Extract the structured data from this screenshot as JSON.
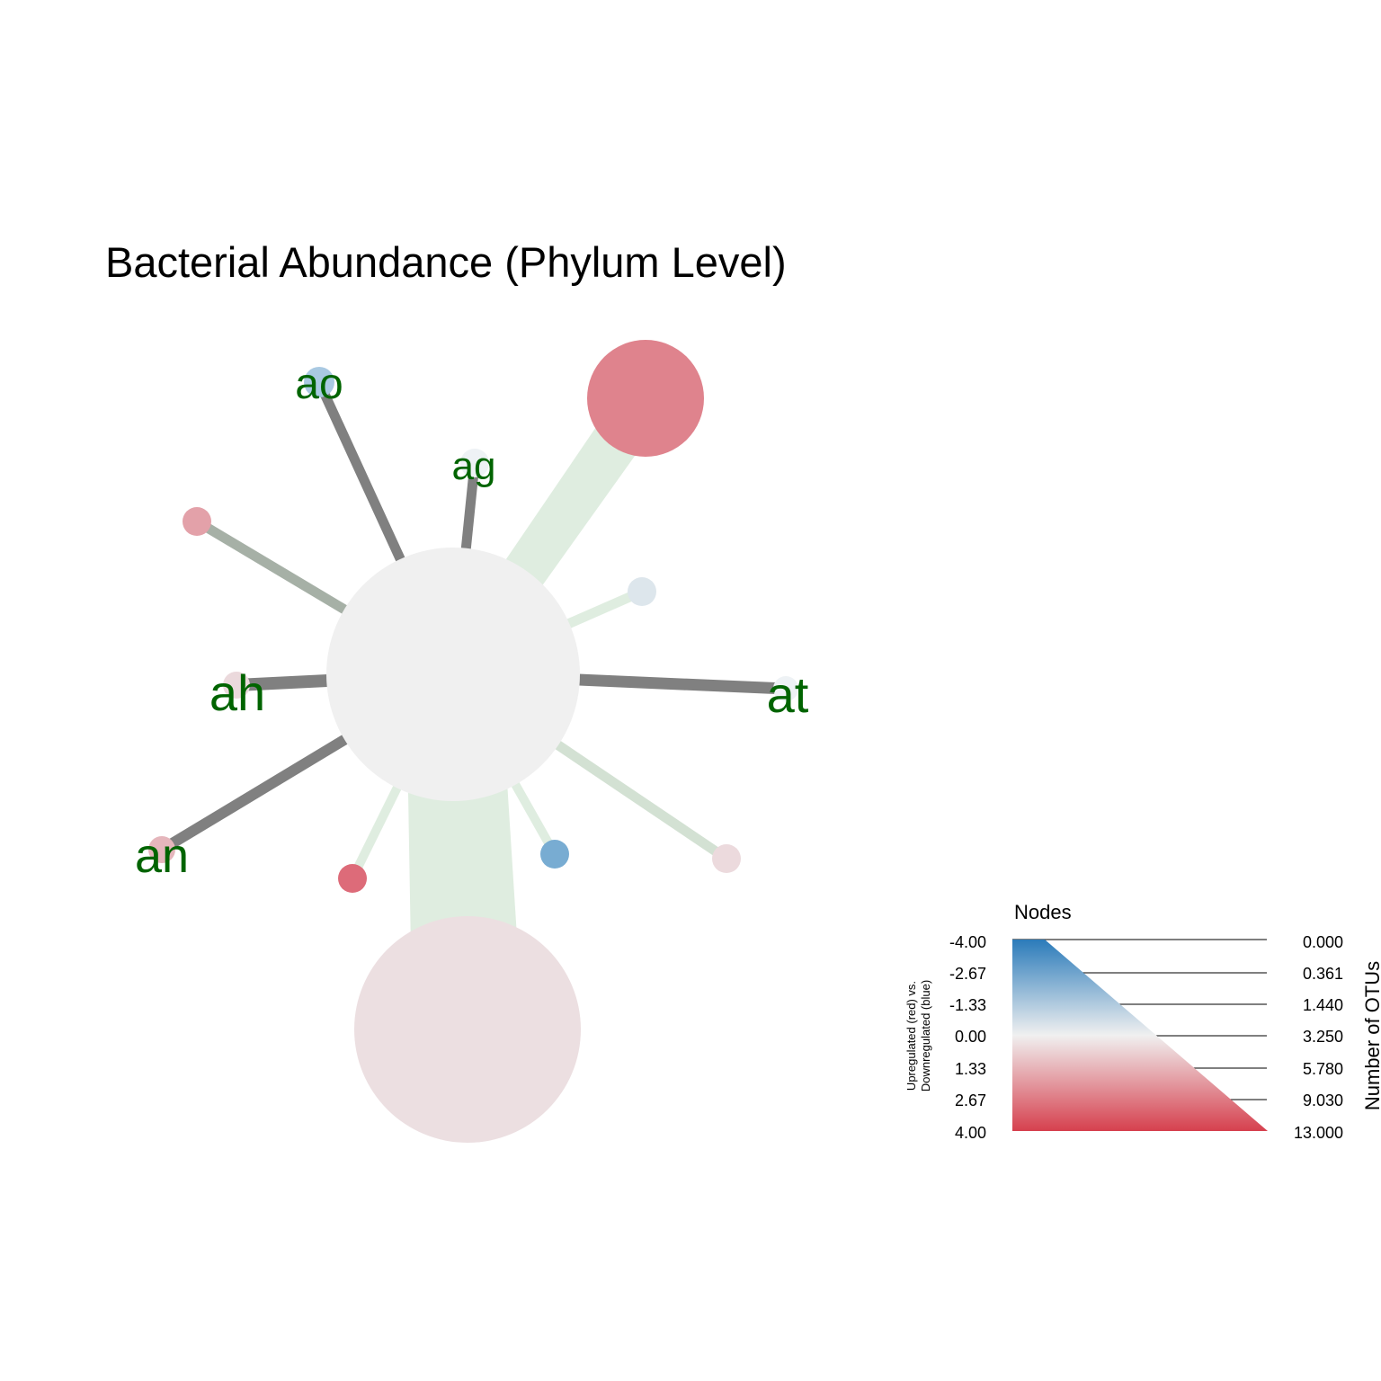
{
  "title": "Bacterial Abundance (Phylum Level)",
  "colors": {
    "down": "#2b7bba",
    "neutral": "#f0f0f0",
    "up": "#d6404e",
    "label": "#006400",
    "edge_dark": "#808080",
    "edge_light_green": "#dcebdc",
    "edge_grey_green": "#a6b0a6"
  },
  "tree": {
    "nodes": [
      {
        "id": "root",
        "label": "",
        "color": "#f0f0f0"
      },
      {
        "id": "top-right",
        "label": "",
        "color": "#df838d"
      },
      {
        "id": "bottom",
        "label": "",
        "color": "#ecdfe1"
      },
      {
        "id": "ao",
        "label": "ao",
        "color": "#a9c9e2"
      },
      {
        "id": "ag",
        "label": "ag",
        "color": "#eef2f5"
      },
      {
        "id": "upper-left",
        "label": "",
        "color": "#e3a1a9"
      },
      {
        "id": "right-small",
        "label": "",
        "color": "#dde6ec"
      },
      {
        "id": "ah",
        "label": "ah",
        "color": "#ebd9dc"
      },
      {
        "id": "at",
        "label": "at",
        "color": "#eef2f5"
      },
      {
        "id": "an",
        "label": "an",
        "color": "#e5b6bc"
      },
      {
        "id": "lower-left-red",
        "label": "",
        "color": "#dd6b79"
      },
      {
        "id": "lower-blue",
        "label": "",
        "color": "#78acd2"
      },
      {
        "id": "lower-right",
        "label": "",
        "color": "#ecdadd"
      }
    ],
    "edges": [
      {
        "from": "root",
        "to": "top-right",
        "color": "#dfede0"
      },
      {
        "from": "root",
        "to": "bottom",
        "color": "#dfede0"
      },
      {
        "from": "root",
        "to": "ao",
        "color": "#808080"
      },
      {
        "from": "root",
        "to": "ag",
        "color": "#808080"
      },
      {
        "from": "root",
        "to": "upper-left",
        "color": "#a6b0a6"
      },
      {
        "from": "root",
        "to": "right-small",
        "color": "#dfede0"
      },
      {
        "from": "root",
        "to": "ah",
        "color": "#808080"
      },
      {
        "from": "root",
        "to": "at",
        "color": "#808080"
      },
      {
        "from": "root",
        "to": "an",
        "color": "#808080"
      },
      {
        "from": "root",
        "to": "lower-left-red",
        "color": "#dfede0"
      },
      {
        "from": "root",
        "to": "lower-blue",
        "color": "#dfede0"
      },
      {
        "from": "root",
        "to": "lower-right",
        "color": "#d3e1d3"
      }
    ]
  },
  "legend": {
    "title": "Nodes",
    "left_axis_line1": "Upregulated (red) vs.",
    "left_axis_line2": "Downregulated (blue)",
    "left_ticks": [
      "-4.00",
      "-2.67",
      "-1.33",
      "0.00",
      "1.33",
      "2.67",
      "4.00"
    ],
    "right_axis_label": "Number of OTUs",
    "right_ticks": [
      "0.000",
      "0.361",
      "1.440",
      "3.250",
      "5.780",
      "9.030",
      "13.000"
    ]
  }
}
